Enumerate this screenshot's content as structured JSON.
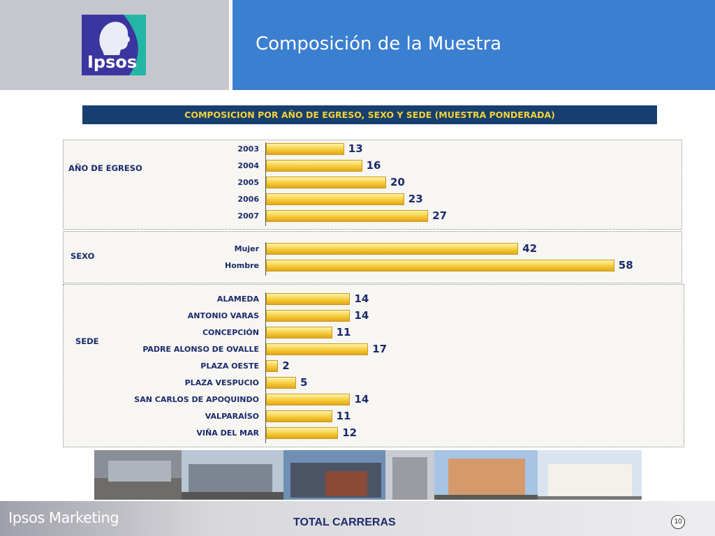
{
  "header": {
    "title": "Composición de la Muestra",
    "logo_text": "Ipsos"
  },
  "subtitle_bar": "COMPOSICION POR  AÑO DE EGRESO, SEXO Y SEDE (MUESTRA PONDERADA)",
  "chart_data": {
    "type": "bar",
    "orientation": "horizontal",
    "title": "COMPOSICION POR  AÑO DE EGRESO, SEXO Y SEDE (MUESTRA PONDERADA)",
    "groups": [
      {
        "name": "AÑO  DE EGRESO",
        "categories": [
          "2003",
          "2004",
          "2005",
          "2006",
          "2007"
        ],
        "values": [
          13,
          16,
          20,
          23,
          27
        ]
      },
      {
        "name": "SEXO",
        "categories": [
          "Mujer",
          "Hombre"
        ],
        "values": [
          42,
          58
        ]
      },
      {
        "name": "SEDE",
        "categories": [
          "ALAMEDA",
          "ANTONIO VARAS",
          "CONCEPCIÓN",
          "PADRE ALONSO DE OVALLE",
          "PLAZA OESTE",
          "PLAZA VESPUCIO",
          "SAN CARLOS DE APOQUINDO",
          "VALPARAÍSO",
          "VIÑA DEL MAR"
        ],
        "values": [
          14,
          14,
          11,
          17,
          2,
          5,
          14,
          11,
          12
        ]
      }
    ],
    "bar_color": "#f5c833",
    "value_labels": true
  },
  "footer": {
    "brand": "Ipsos Marketing",
    "title": "TOTAL CARRERAS",
    "page_number": "10"
  },
  "photos": [
    "campus-building-1",
    "campus-building-2",
    "campus-building-3",
    "campus-building-4",
    "campus-building-5",
    "campus-building-6",
    "campus-building-7"
  ]
}
